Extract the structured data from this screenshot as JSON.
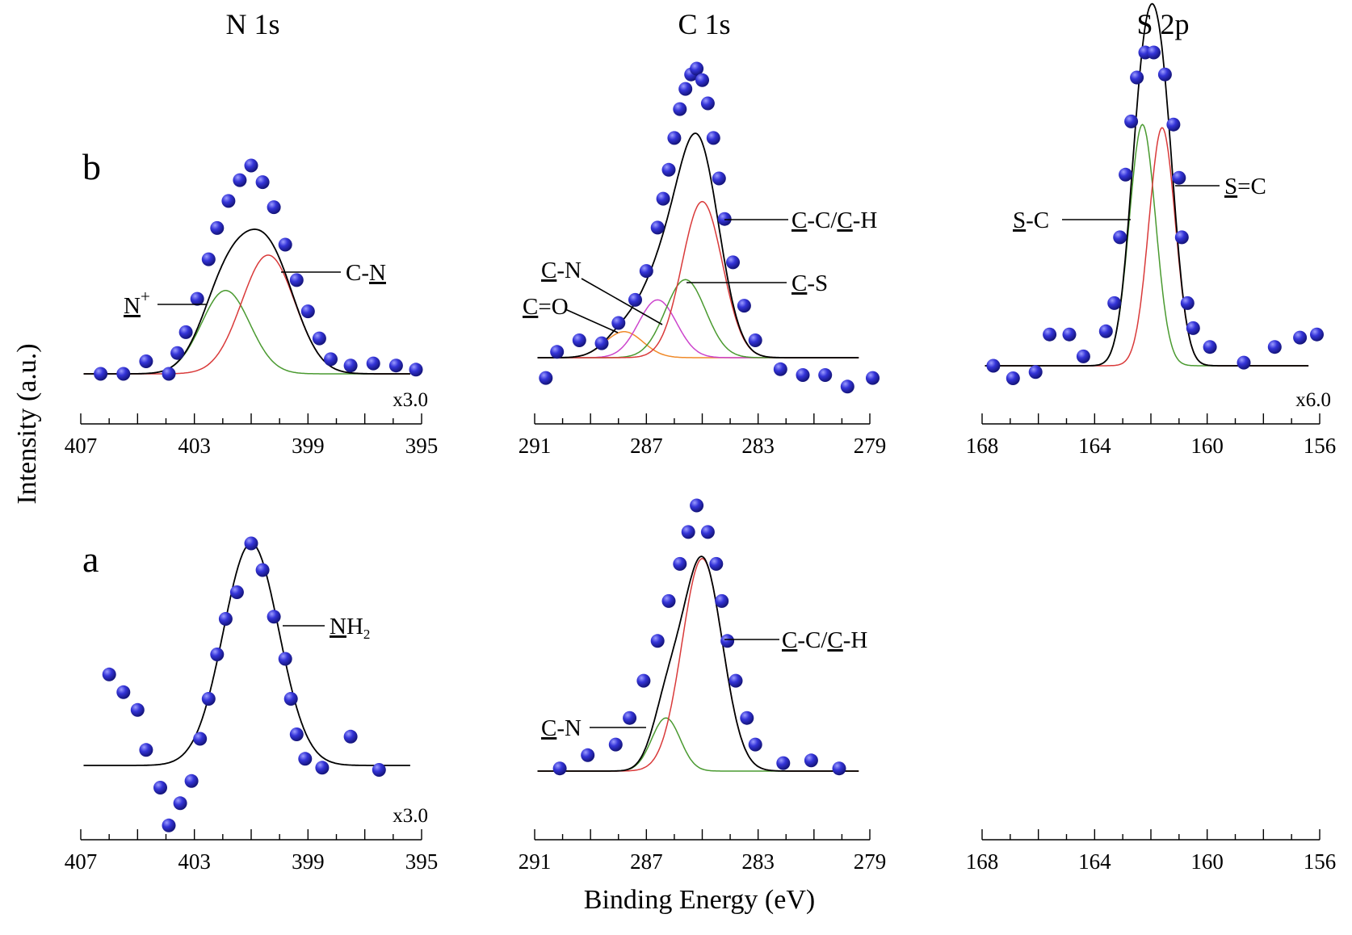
{
  "colors": {
    "points": "#2f2fc8",
    "envelope": "#000000",
    "red": "#d93a3a",
    "green": "#4a9a30",
    "magenta": "#cc44cc",
    "orange": "#f08a2a"
  },
  "chart_data": {
    "type": "scatter",
    "ylabel": "Intensity (a.u.)",
    "xlabel": "Binding Energy (eV)",
    "column_titles": [
      "N 1s",
      "C 1s",
      "S 2p"
    ],
    "row_labels": [
      "b",
      "a"
    ],
    "axes": [
      {
        "id": "N1s",
        "xlim": [
          407,
          395
        ],
        "ticks": [
          "407",
          "403",
          "399",
          "395"
        ]
      },
      {
        "id": "C1s",
        "xlim": [
          291,
          279
        ],
        "ticks": [
          "291",
          "287",
          "283",
          "279"
        ]
      },
      {
        "id": "S2p",
        "xlim": [
          168,
          156
        ],
        "ticks": [
          "168",
          "164",
          "160",
          "156"
        ]
      }
    ],
    "panels": [
      {
        "id": "b-N1s",
        "row": "b",
        "axis": "N1s",
        "multiplier": "x3.0",
        "baseline": 0,
        "ylim": [
          0,
          1.12
        ],
        "points": [
          [
            406.3,
            0
          ],
          [
            405.5,
            0
          ],
          [
            404.7,
            0.06
          ],
          [
            403.9,
            0
          ],
          [
            403.6,
            0.1
          ],
          [
            403.3,
            0.2
          ],
          [
            402.9,
            0.36
          ],
          [
            402.5,
            0.55
          ],
          [
            402.2,
            0.7
          ],
          [
            401.8,
            0.83
          ],
          [
            401.4,
            0.93
          ],
          [
            401.0,
            1.0
          ],
          [
            400.6,
            0.92
          ],
          [
            400.2,
            0.8
          ],
          [
            399.8,
            0.62
          ],
          [
            399.4,
            0.45
          ],
          [
            399.0,
            0.3
          ],
          [
            398.6,
            0.17
          ],
          [
            398.2,
            0.07
          ],
          [
            397.5,
            0.04
          ],
          [
            396.7,
            0.05
          ],
          [
            395.9,
            0.04
          ],
          [
            395.2,
            0.02
          ]
        ],
        "components": [
          {
            "label": "N+",
            "center": 401.9,
            "amp": 0.4,
            "fwhm": 2.0,
            "color": "green"
          },
          {
            "label": "C-N",
            "center": 400.4,
            "amp": 0.57,
            "fwhm": 2.2,
            "color": "red"
          }
        ],
        "annotations": [
          "N+",
          "C-N"
        ]
      },
      {
        "id": "b-C1s",
        "row": "b",
        "axis": "C1s",
        "multiplier": "",
        "baseline": 0,
        "ylim": [
          0,
          1.08
        ],
        "points": [
          [
            290.6,
            -0.07
          ],
          [
            290.2,
            0.02
          ],
          [
            289.4,
            0.06
          ],
          [
            288.6,
            0.05
          ],
          [
            288.0,
            0.12
          ],
          [
            287.4,
            0.2
          ],
          [
            287.0,
            0.3
          ],
          [
            286.6,
            0.45
          ],
          [
            286.4,
            0.55
          ],
          [
            286.2,
            0.65
          ],
          [
            286.0,
            0.76
          ],
          [
            285.8,
            0.86
          ],
          [
            285.6,
            0.93
          ],
          [
            285.4,
            0.98
          ],
          [
            285.2,
            1.0
          ],
          [
            285.0,
            0.96
          ],
          [
            284.8,
            0.88
          ],
          [
            284.6,
            0.76
          ],
          [
            284.4,
            0.62
          ],
          [
            284.2,
            0.48
          ],
          [
            283.9,
            0.33
          ],
          [
            283.5,
            0.18
          ],
          [
            283.1,
            0.06
          ],
          [
            282.2,
            -0.04
          ],
          [
            281.4,
            -0.06
          ],
          [
            280.6,
            -0.06
          ],
          [
            279.8,
            -0.1
          ],
          [
            278.9,
            -0.07
          ]
        ],
        "components": [
          {
            "label": "C=O",
            "center": 287.8,
            "amp": 0.09,
            "fwhm": 1.6,
            "color": "orange"
          },
          {
            "label": "C-N",
            "center": 286.6,
            "amp": 0.2,
            "fwhm": 1.6,
            "color": "magenta"
          },
          {
            "label": "C-S",
            "center": 285.6,
            "amp": 0.27,
            "fwhm": 1.7,
            "color": "green"
          },
          {
            "label": "C-C/C-H",
            "center": 285.0,
            "amp": 0.54,
            "fwhm": 1.7,
            "color": "red"
          }
        ],
        "annotations": [
          "C=O",
          "C-N",
          "C-S",
          "C-C/C-H"
        ]
      },
      {
        "id": "b-S2p",
        "row": "b",
        "axis": "S2p",
        "multiplier": "x6.0",
        "baseline": 0,
        "ylim": [
          0,
          1.05
        ],
        "points": [
          [
            167.6,
            0
          ],
          [
            166.9,
            -0.04
          ],
          [
            166.1,
            -0.02
          ],
          [
            165.6,
            0.1
          ],
          [
            164.9,
            0.1
          ],
          [
            164.4,
            0.03
          ],
          [
            163.6,
            0.11
          ],
          [
            163.3,
            0.2
          ],
          [
            163.1,
            0.41
          ],
          [
            162.9,
            0.61
          ],
          [
            162.7,
            0.78
          ],
          [
            162.5,
            0.92
          ],
          [
            162.2,
            1.0
          ],
          [
            161.9,
            1.0
          ],
          [
            161.5,
            0.93
          ],
          [
            161.2,
            0.77
          ],
          [
            161.0,
            0.6
          ],
          [
            160.9,
            0.41
          ],
          [
            160.7,
            0.2
          ],
          [
            160.5,
            0.12
          ],
          [
            159.9,
            0.06
          ],
          [
            158.7,
            0.01
          ],
          [
            157.6,
            0.06
          ],
          [
            156.7,
            0.09
          ],
          [
            156.1,
            0.1
          ]
        ],
        "components": [
          {
            "label": "S-C",
            "center": 162.3,
            "amp": 0.77,
            "fwhm": 1.1,
            "color": "green"
          },
          {
            "label": "S=C",
            "center": 161.6,
            "amp": 0.76,
            "fwhm": 1.1,
            "color": "red"
          }
        ],
        "annotations": [
          "S-C",
          "S=C"
        ]
      },
      {
        "id": "a-N1s",
        "row": "a",
        "axis": "N1s",
        "multiplier": "x3.0",
        "baseline": 0,
        "ylim": [
          0,
          1.12
        ],
        "points": [
          [
            406.0,
            0.41
          ],
          [
            405.5,
            0.33
          ],
          [
            405.0,
            0.25
          ],
          [
            404.7,
            0.07
          ],
          [
            404.2,
            -0.1
          ],
          [
            403.9,
            -0.27
          ],
          [
            403.5,
            -0.17
          ],
          [
            403.1,
            -0.07
          ],
          [
            402.8,
            0.12
          ],
          [
            402.5,
            0.3
          ],
          [
            402.2,
            0.5
          ],
          [
            401.9,
            0.66
          ],
          [
            401.5,
            0.78
          ],
          [
            401.0,
            1.0
          ],
          [
            400.6,
            0.88
          ],
          [
            400.2,
            0.67
          ],
          [
            399.8,
            0.48
          ],
          [
            399.6,
            0.3
          ],
          [
            399.4,
            0.14
          ],
          [
            399.1,
            0.03
          ],
          [
            398.5,
            -0.01
          ],
          [
            397.5,
            0.13
          ],
          [
            396.5,
            -0.02
          ]
        ],
        "components": [
          {
            "label": "NH2",
            "center": 401.0,
            "amp": 1.0,
            "fwhm": 2.3,
            "color": "black"
          }
        ],
        "annotations": [
          "NH2"
        ]
      },
      {
        "id": "a-C1s",
        "row": "a",
        "axis": "C1s",
        "multiplier": "",
        "baseline": 0,
        "ylim": [
          0,
          1.08
        ],
        "points": [
          [
            290.1,
            0.01
          ],
          [
            289.1,
            0.06
          ],
          [
            288.1,
            0.1
          ],
          [
            287.6,
            0.2
          ],
          [
            287.1,
            0.34
          ],
          [
            286.6,
            0.49
          ],
          [
            286.2,
            0.64
          ],
          [
            285.8,
            0.78
          ],
          [
            285.5,
            0.9
          ],
          [
            285.2,
            1.0
          ],
          [
            284.8,
            0.9
          ],
          [
            284.5,
            0.78
          ],
          [
            284.3,
            0.64
          ],
          [
            284.1,
            0.49
          ],
          [
            283.8,
            0.34
          ],
          [
            283.4,
            0.2
          ],
          [
            283.1,
            0.1
          ],
          [
            282.1,
            0.03
          ],
          [
            281.1,
            0.04
          ],
          [
            280.1,
            0.01
          ]
        ],
        "components": [
          {
            "label": "C-N",
            "center": 286.3,
            "amp": 0.2,
            "fwhm": 1.2,
            "color": "green"
          },
          {
            "label": "C-C/C-H",
            "center": 285.0,
            "amp": 0.8,
            "fwhm": 1.7,
            "color": "red"
          }
        ],
        "annotations": [
          "C-N",
          "C-C/C-H"
        ]
      }
    ]
  },
  "text": {
    "title_n": "N 1s",
    "title_c": "C 1s",
    "title_s": "S 2p",
    "row_b": "b",
    "row_a": "a",
    "ylabel": "Intensity (a.u.)",
    "xlabel": "Binding Energy (eV)",
    "mult_b_n": "x3.0",
    "mult_b_s": "x6.0",
    "mult_a_n": "x3.0",
    "ann_nplus_base": "N",
    "ann_nplus_sup": "+",
    "ann_c_n_pre": "C-",
    "ann_c_n_u": "N",
    "ann_cc_ch_u1": "C",
    "ann_cc_ch_mid": "-C/",
    "ann_cc_ch_u2": "C",
    "ann_cc_ch_end": "-H",
    "ann_cn_u": "C",
    "ann_cn_end": "-N",
    "ann_co_u": "C",
    "ann_co_end": "=O",
    "ann_cs_u": "C",
    "ann_cs_end": "-S",
    "ann_sc_u": "S",
    "ann_sc_end": "-C",
    "ann_sdc_u": "S",
    "ann_sdc_end": "=C",
    "ann_nh2_u": "N",
    "ann_nh2_h": "H",
    "ann_nh2_sub": "2"
  }
}
